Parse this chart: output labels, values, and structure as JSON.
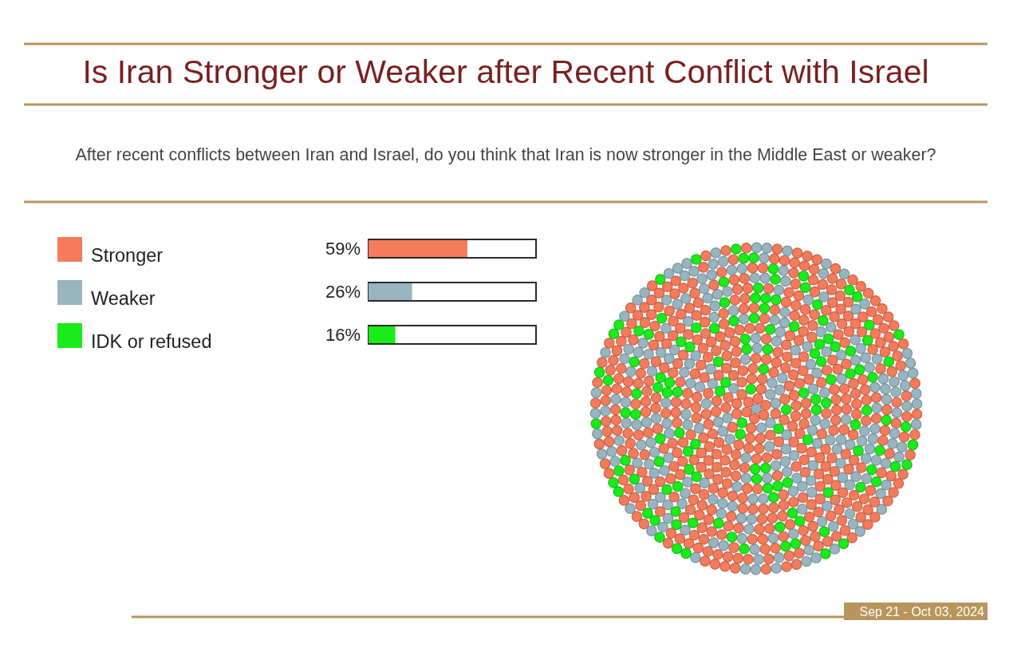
{
  "chart_data": {
    "type": "bar",
    "orientation": "horizontal",
    "title": "Is Iran Stronger or Weaker after Recent Conflict with Israel",
    "subtitle": "After recent conflicts between Iran and Israel, do you think that Iran is now stronger in the Middle East or weaker?",
    "categories": [
      "Stronger",
      "Weaker",
      "IDK or refused"
    ],
    "values": [
      59,
      26,
      16
    ],
    "colors": [
      "#f47b5b",
      "#98b5bf",
      "#1aeb1a"
    ],
    "value_labels": [
      "59%",
      "26%",
      "16%"
    ],
    "xlim": [
      0,
      100
    ],
    "tick_labels": "y",
    "annotations": [
      "Sep 21 - Oct 03, 2024"
    ]
  }
}
